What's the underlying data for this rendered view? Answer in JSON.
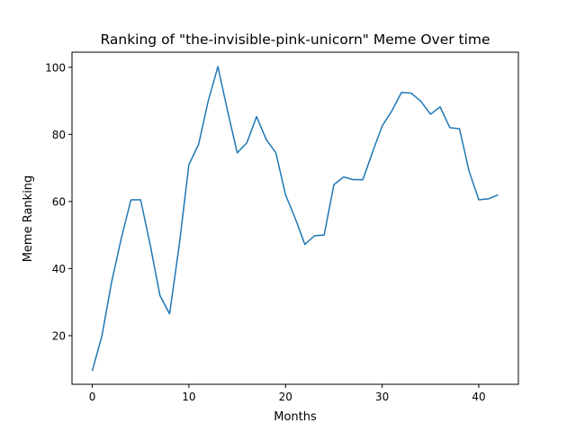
{
  "chart_data": {
    "type": "line",
    "title": "Ranking of \"the-invisible-pink-unicorn\" Meme Over time",
    "xlabel": "Months",
    "ylabel": "Meme Ranking",
    "xlim": [
      -2.1,
      44.1
    ],
    "ylim": [
      5.5,
      104.5
    ],
    "xticks": [
      0,
      10,
      20,
      30,
      40
    ],
    "yticks": [
      20,
      40,
      60,
      80,
      100
    ],
    "grid": false,
    "line_color": "#1f77b4",
    "series": [
      {
        "x": [
          0,
          1,
          2,
          3,
          4,
          5,
          6,
          7,
          8,
          9,
          10,
          11,
          12,
          13,
          14,
          15,
          16,
          17,
          18,
          19,
          20,
          21,
          22,
          23,
          24,
          25,
          26,
          27,
          28,
          29,
          30,
          31,
          32,
          33,
          34,
          35,
          36,
          37,
          38,
          39,
          40,
          41,
          42
        ],
        "values": [
          9.5,
          20,
          36,
          49,
          60.5,
          60.5,
          47,
          32,
          26.5,
          47,
          71,
          77,
          90,
          100.2,
          87,
          74.5,
          77.5,
          85.3,
          78.5,
          74.5,
          62,
          55,
          47.2,
          49.8,
          50,
          65,
          67.3,
          66.5,
          66.5,
          74.7,
          82.5,
          87,
          92.5,
          92.3,
          89.9,
          86,
          88.2,
          82,
          81.7,
          69,
          60.5,
          60.8,
          62
        ]
      }
    ]
  }
}
